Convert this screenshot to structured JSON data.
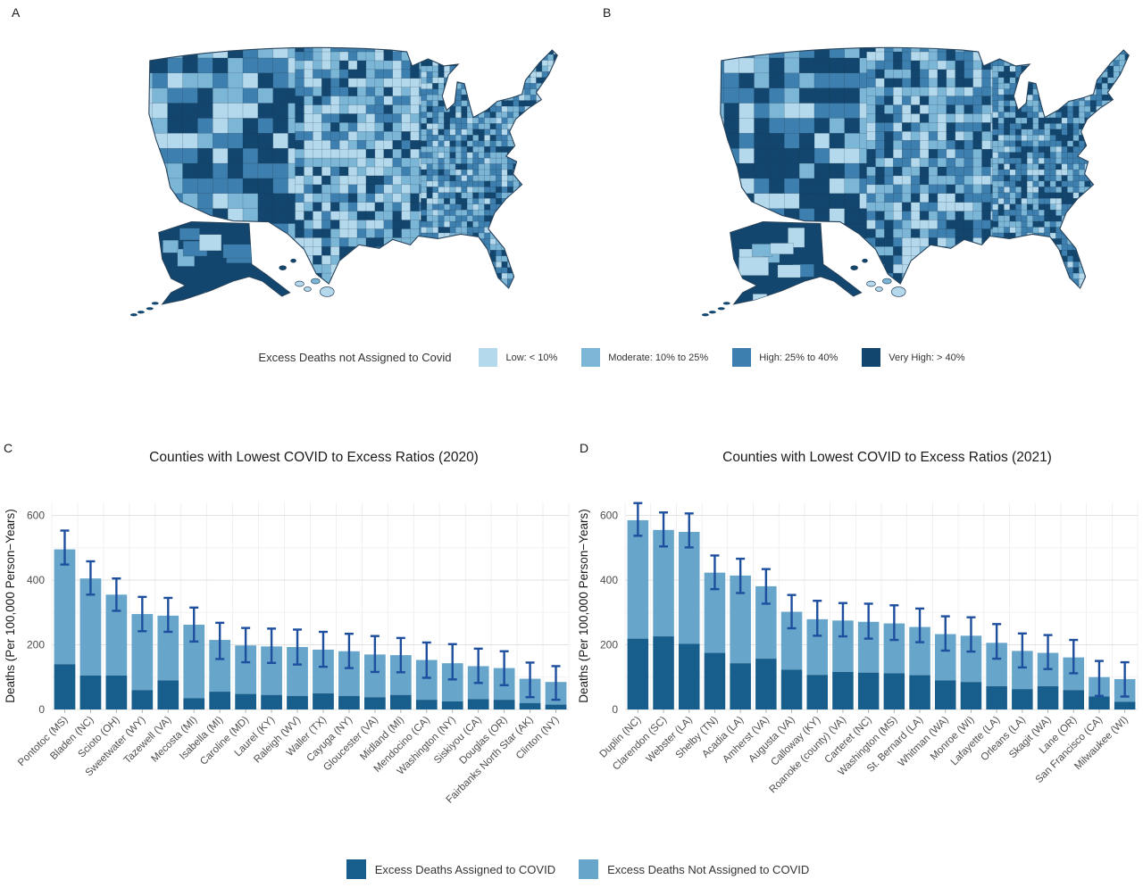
{
  "figure": {
    "panels": {
      "a": "A",
      "b": "B",
      "c": "C",
      "d": "D"
    },
    "map_legend": {
      "title": "Excess Deaths not Assigned to Covid",
      "items": [
        {
          "label": "Low: < 10%",
          "color": "#b5d9ec"
        },
        {
          "label": "Moderate: 10% to 25%",
          "color": "#7cb6d6"
        },
        {
          "label": "High: 25% to 40%",
          "color": "#3d7fae"
        },
        {
          "label": "Very High: > 40%",
          "color": "#12466e"
        }
      ]
    },
    "bar_legend": {
      "items": [
        {
          "label": "Excess Deaths Assigned to COVID",
          "color": "#175e8c"
        },
        {
          "label": "Excess Deaths Not Assigned to COVID",
          "color": "#67a5ca"
        }
      ]
    },
    "colors": {
      "assigned": "#175e8c",
      "not_assigned": "#67a5ca",
      "error_bar": "#1d4f9e",
      "map_outline": "#27425a"
    }
  },
  "chart_data": [
    {
      "type": "bar",
      "stacked": true,
      "panel": "C",
      "title": "Counties with Lowest COVID to Excess Ratios (2020)",
      "xlabel": "",
      "ylabel": "Deaths (Per 100,000 Person−Years)",
      "yticks": [
        0,
        200,
        400,
        600
      ],
      "ylim": [
        0,
        640
      ],
      "grid": true,
      "legend_position": "shared-bottom",
      "categories": [
        "Pontotoc (MS)",
        "Bladen (NC)",
        "Scioto (OH)",
        "Sweetwater (WY)",
        "Tazewell (VA)",
        "Mecosta (MI)",
        "Isabella (MI)",
        "Caroline (MD)",
        "Laurel (KY)",
        "Raleigh (WV)",
        "Waller (TX)",
        "Cayuga (NY)",
        "Gloucester (VA)",
        "Midland (MI)",
        "Mendocino (CA)",
        "Washington (NY)",
        "Siskiyou (CA)",
        "Douglas (OR)",
        "Fairbanks North Star (AK)",
        "Clinton (NY)"
      ],
      "series": [
        {
          "name": "Excess Deaths Assigned to COVID",
          "values": [
            140,
            105,
            105,
            60,
            90,
            35,
            55,
            48,
            45,
            42,
            50,
            42,
            38,
            45,
            30,
            25,
            32,
            30,
            20,
            15
          ]
        },
        {
          "name": "Excess Deaths Not Assigned to COVID",
          "values": [
            355,
            300,
            250,
            235,
            200,
            227,
            160,
            150,
            150,
            151,
            135,
            138,
            132,
            123,
            123,
            118,
            102,
            98,
            75,
            70
          ]
        }
      ],
      "totals": [
        495,
        405,
        355,
        295,
        290,
        262,
        215,
        198,
        195,
        193,
        185,
        180,
        170,
        168,
        153,
        143,
        134,
        128,
        95,
        85
      ],
      "error_high": [
        553,
        458,
        405,
        348,
        345,
        315,
        268,
        252,
        250,
        247,
        240,
        234,
        227,
        221,
        207,
        202,
        188,
        180,
        145,
        134
      ],
      "error_low": [
        448,
        355,
        305,
        242,
        240,
        210,
        156,
        146,
        144,
        139,
        132,
        128,
        116,
        115,
        98,
        93,
        82,
        75,
        38,
        30
      ]
    },
    {
      "type": "bar",
      "stacked": true,
      "panel": "D",
      "title": "Counties with Lowest COVID to Excess Ratios (2021)",
      "xlabel": "",
      "ylabel": "Deaths (Per 100,000 Person−Years)",
      "yticks": [
        0,
        200,
        400,
        600
      ],
      "ylim": [
        0,
        640
      ],
      "grid": true,
      "legend_position": "shared-bottom",
      "categories": [
        "Duplin (NC)",
        "Clarendon (SC)",
        "Webster (LA)",
        "Shelby (TN)",
        "Acadia (LA)",
        "Amherst (VA)",
        "Augusta (VA)",
        "Calloway (KY)",
        "Roanoke (county) (VA)",
        "Carteret (NC)",
        "Washington (MS)",
        "St. Bernard (LA)",
        "Whitman (WA)",
        "Monroe (WI)",
        "Lafayette (LA)",
        "Orleans (LA)",
        "Skagit (WA)",
        "Lane (OR)",
        "San Francisco (CA)",
        "Milwaukee (WI)"
      ],
      "series": [
        {
          "name": "Excess Deaths Assigned to COVID",
          "values": [
            219,
            226,
            203,
            175,
            143,
            157,
            123,
            107,
            116,
            114,
            112,
            106,
            90,
            85,
            72,
            63,
            72,
            60,
            40,
            24
          ]
        },
        {
          "name": "Excess Deaths Not Assigned to COVID",
          "values": [
            366,
            329,
            346,
            248,
            271,
            224,
            179,
            172,
            159,
            157,
            154,
            149,
            143,
            143,
            134,
            118,
            103,
            101,
            60,
            70
          ]
        }
      ],
      "totals": [
        585,
        555,
        549,
        423,
        414,
        381,
        302,
        279,
        275,
        271,
        266,
        255,
        233,
        228,
        206,
        181,
        175,
        161,
        100,
        94
      ],
      "error_high": [
        638,
        609,
        606,
        476,
        466,
        434,
        354,
        336,
        329,
        327,
        322,
        312,
        288,
        285,
        264,
        235,
        230,
        215,
        150,
        146
      ],
      "error_low": [
        537,
        504,
        501,
        372,
        360,
        327,
        251,
        228,
        226,
        219,
        215,
        208,
        182,
        179,
        157,
        130,
        125,
        112,
        42,
        40
      ]
    }
  ]
}
